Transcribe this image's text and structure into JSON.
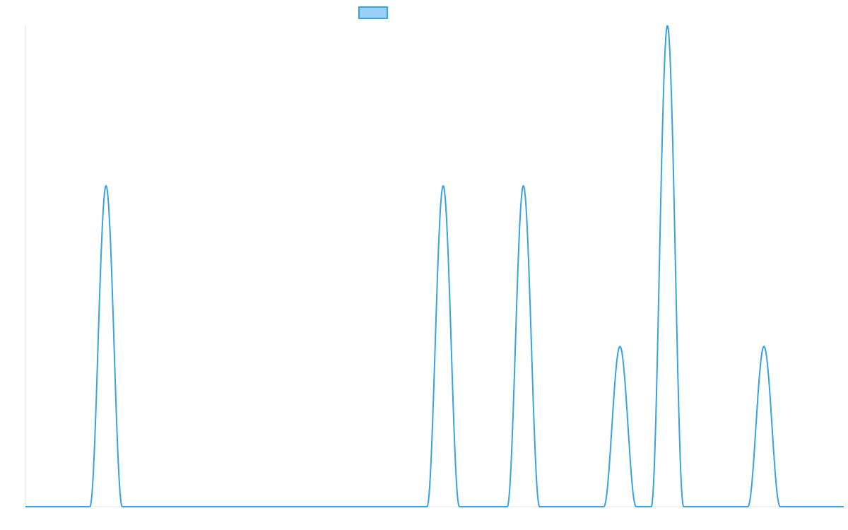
{
  "chart_data": {
    "type": "line",
    "title": "",
    "xlabel": "",
    "ylabel": "",
    "xlim": [
      0,
      1
    ],
    "ylim": [
      0,
      1
    ],
    "grid": false,
    "legend": {
      "position": "top",
      "entries": [
        ""
      ]
    },
    "series": [
      {
        "color": "#36a2eb",
        "fill_color": "#9ad0f5",
        "peaks": [
          {
            "center": 0.0985,
            "height": 0.667,
            "half_width": 0.0197
          },
          {
            "center": 0.5105,
            "height": 0.667,
            "half_width": 0.0197
          },
          {
            "center": 0.6085,
            "height": 0.667,
            "half_width": 0.0197
          },
          {
            "center": 0.7265,
            "height": 0.333,
            "half_width": 0.0197
          },
          {
            "center": 0.7845,
            "height": 1.0,
            "half_width": 0.0197
          },
          {
            "center": 0.9025,
            "height": 0.333,
            "half_width": 0.0197
          }
        ]
      }
    ]
  }
}
